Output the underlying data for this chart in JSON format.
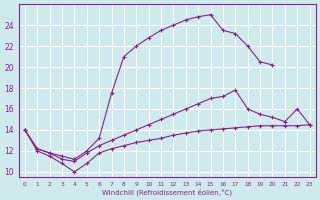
{
  "xlabel": "Windchill (Refroidissement éolien,°C)",
  "bg_color": "#ceeaec",
  "grid_color": "#ffffff",
  "line_color": "#882288",
  "xlim": [
    -0.5,
    23.5
  ],
  "ylim": [
    9.5,
    26.0
  ],
  "xticks": [
    0,
    1,
    2,
    3,
    4,
    5,
    6,
    7,
    8,
    9,
    10,
    11,
    12,
    13,
    14,
    15,
    16,
    17,
    18,
    19,
    20,
    21,
    22,
    23
  ],
  "yticks": [
    10,
    12,
    14,
    16,
    18,
    20,
    22,
    24
  ],
  "series": [
    {
      "x": [
        0,
        1,
        2,
        3,
        4,
        5,
        6,
        7,
        8,
        9,
        10,
        11,
        12,
        13,
        14,
        15,
        16,
        17,
        18,
        19,
        20
      ],
      "y": [
        14.0,
        12.2,
        11.8,
        11.5,
        11.2,
        12.0,
        13.2,
        17.5,
        21.0,
        22.0,
        22.8,
        23.5,
        24.0,
        24.5,
        24.8,
        25.0,
        23.5,
        23.2,
        22.0,
        20.5,
        20.2
      ]
    },
    {
      "x": [
        0,
        1,
        2,
        3,
        4,
        5,
        6,
        7,
        8,
        9,
        10,
        11,
        12,
        13,
        14,
        15,
        16,
        17,
        18,
        19,
        20,
        21,
        22,
        23
      ],
      "y": [
        14.0,
        12.2,
        11.8,
        11.2,
        11.0,
        11.8,
        12.5,
        13.0,
        13.5,
        14.0,
        14.5,
        15.0,
        15.5,
        16.0,
        16.5,
        17.0,
        17.2,
        17.8,
        16.0,
        15.5,
        15.2,
        14.8,
        16.0,
        14.5
      ]
    },
    {
      "x": [
        0,
        1,
        2,
        3,
        4,
        5,
        6,
        7,
        8,
        9,
        10,
        11,
        12,
        13,
        14,
        15,
        16,
        17,
        18,
        19,
        20,
        21,
        22,
        23
      ],
      "y": [
        14.0,
        12.0,
        11.5,
        10.8,
        10.0,
        10.8,
        11.8,
        12.2,
        12.5,
        12.8,
        13.0,
        13.2,
        13.5,
        13.7,
        13.9,
        14.0,
        14.1,
        14.2,
        14.3,
        14.4,
        14.4,
        14.4,
        14.4,
        14.5
      ]
    }
  ]
}
